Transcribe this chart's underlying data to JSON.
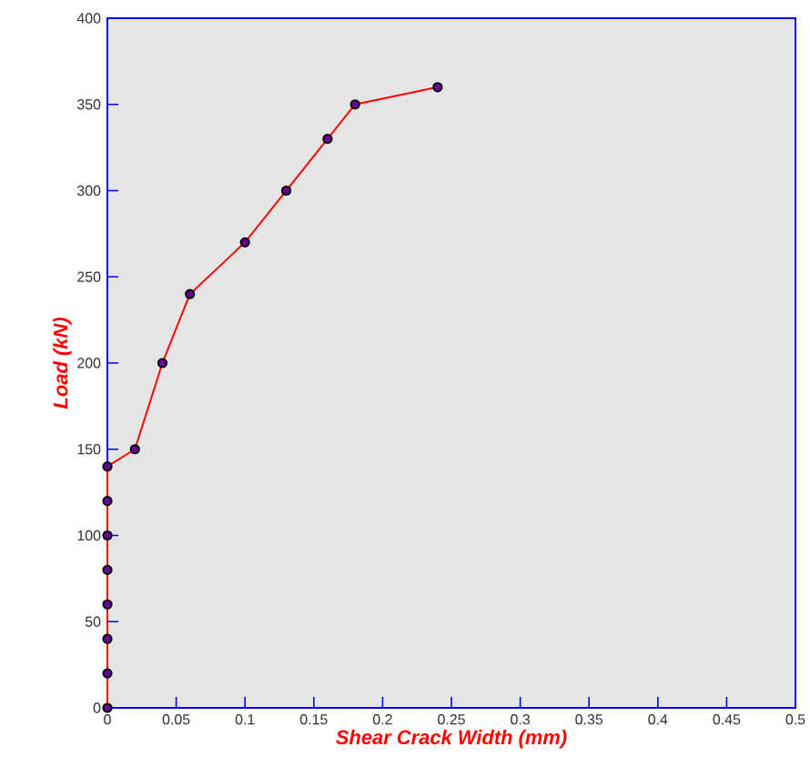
{
  "chart_data": {
    "type": "line",
    "xlabel": "Shear Crack Width (mm)",
    "ylabel": "Load (kN)",
    "x": [
      0,
      0,
      0,
      0,
      0,
      0,
      0,
      0,
      0.02,
      0.04,
      0.06,
      0.1,
      0.13,
      0.16,
      0.18,
      0.24
    ],
    "series": [
      {
        "color": "#ff0000",
        "values": [
          0,
          20,
          40,
          60,
          80,
          100,
          120,
          140,
          150,
          200,
          240,
          270,
          300,
          330,
          350,
          360
        ]
      }
    ],
    "marker": "circle",
    "line_style": "solid",
    "grid": false,
    "xlim": [
      0,
      0.5
    ],
    "ylim": [
      0,
      400
    ],
    "xticks": [
      0,
      0.05,
      0.1,
      0.15,
      0.2,
      0.25,
      0.3,
      0.35,
      0.4,
      0.45,
      0.5
    ],
    "yticks": [
      0,
      50,
      100,
      150,
      200,
      250,
      300,
      350,
      400
    ]
  }
}
